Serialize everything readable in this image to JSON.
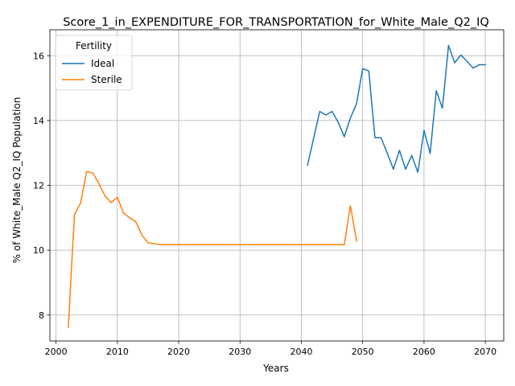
{
  "chart_data": {
    "type": "line",
    "title": "Score_1_in_EXPENDITURE_FOR_TRANSPORTATION_for_White_Male_Q2_IQ",
    "xlabel": "Years",
    "ylabel": "% of White_Male Q2_IQ Population",
    "xlim": [
      1999,
      2073
    ],
    "ylim": [
      7.2,
      16.8
    ],
    "xticks": [
      2000,
      2010,
      2020,
      2030,
      2040,
      2050,
      2060,
      2070
    ],
    "yticks": [
      8,
      10,
      12,
      14,
      16
    ],
    "grid": true,
    "legend": {
      "title": "Fertility",
      "placement": "top-left"
    },
    "series": [
      {
        "name": "Ideal",
        "color": "#1f77b4",
        "points": [
          [
            2041,
            12.62
          ],
          [
            2042,
            13.45
          ],
          [
            2043,
            14.28
          ],
          [
            2044,
            14.17
          ],
          [
            2045,
            14.28
          ],
          [
            2046,
            13.95
          ],
          [
            2047,
            13.5
          ],
          [
            2048,
            14.08
          ],
          [
            2049,
            14.52
          ],
          [
            2050,
            15.6
          ],
          [
            2051,
            15.53
          ],
          [
            2052,
            13.47
          ],
          [
            2053,
            13.47
          ],
          [
            2054,
            13.0
          ],
          [
            2055,
            12.5
          ],
          [
            2056,
            13.08
          ],
          [
            2057,
            12.5
          ],
          [
            2058,
            12.92
          ],
          [
            2059,
            12.4
          ],
          [
            2060,
            13.7
          ],
          [
            2061,
            12.98
          ],
          [
            2062,
            14.92
          ],
          [
            2063,
            14.38
          ],
          [
            2064,
            16.32
          ],
          [
            2065,
            15.78
          ],
          [
            2066,
            16.02
          ],
          [
            2067,
            15.83
          ],
          [
            2068,
            15.62
          ],
          [
            2069,
            15.72
          ],
          [
            2070,
            15.72
          ]
        ]
      },
      {
        "name": "Sterile",
        "color": "#ff7f0e",
        "points": [
          [
            2002,
            7.62
          ],
          [
            2003,
            11.1
          ],
          [
            2004,
            11.45
          ],
          [
            2005,
            12.43
          ],
          [
            2006,
            12.38
          ],
          [
            2007,
            12.05
          ],
          [
            2008,
            11.67
          ],
          [
            2009,
            11.47
          ],
          [
            2010,
            11.63
          ],
          [
            2011,
            11.15
          ],
          [
            2012,
            11.0
          ],
          [
            2013,
            10.88
          ],
          [
            2014,
            10.47
          ],
          [
            2015,
            10.23
          ],
          [
            2016,
            10.2
          ],
          [
            2017,
            10.17
          ],
          [
            2018,
            10.17
          ],
          [
            2019,
            10.17
          ],
          [
            2020,
            10.17
          ],
          [
            2021,
            10.17
          ],
          [
            2022,
            10.17
          ],
          [
            2023,
            10.17
          ],
          [
            2024,
            10.17
          ],
          [
            2025,
            10.17
          ],
          [
            2026,
            10.17
          ],
          [
            2027,
            10.17
          ],
          [
            2028,
            10.17
          ],
          [
            2029,
            10.17
          ],
          [
            2030,
            10.17
          ],
          [
            2031,
            10.17
          ],
          [
            2032,
            10.17
          ],
          [
            2033,
            10.17
          ],
          [
            2034,
            10.17
          ],
          [
            2035,
            10.17
          ],
          [
            2036,
            10.17
          ],
          [
            2037,
            10.17
          ],
          [
            2038,
            10.17
          ],
          [
            2039,
            10.17
          ],
          [
            2040,
            10.17
          ],
          [
            2041,
            10.17
          ],
          [
            2042,
            10.17
          ],
          [
            2043,
            10.17
          ],
          [
            2044,
            10.17
          ],
          [
            2045,
            10.17
          ],
          [
            2046,
            10.17
          ],
          [
            2047,
            10.17
          ],
          [
            2048,
            11.37
          ],
          [
            2049,
            10.28
          ]
        ]
      }
    ]
  }
}
